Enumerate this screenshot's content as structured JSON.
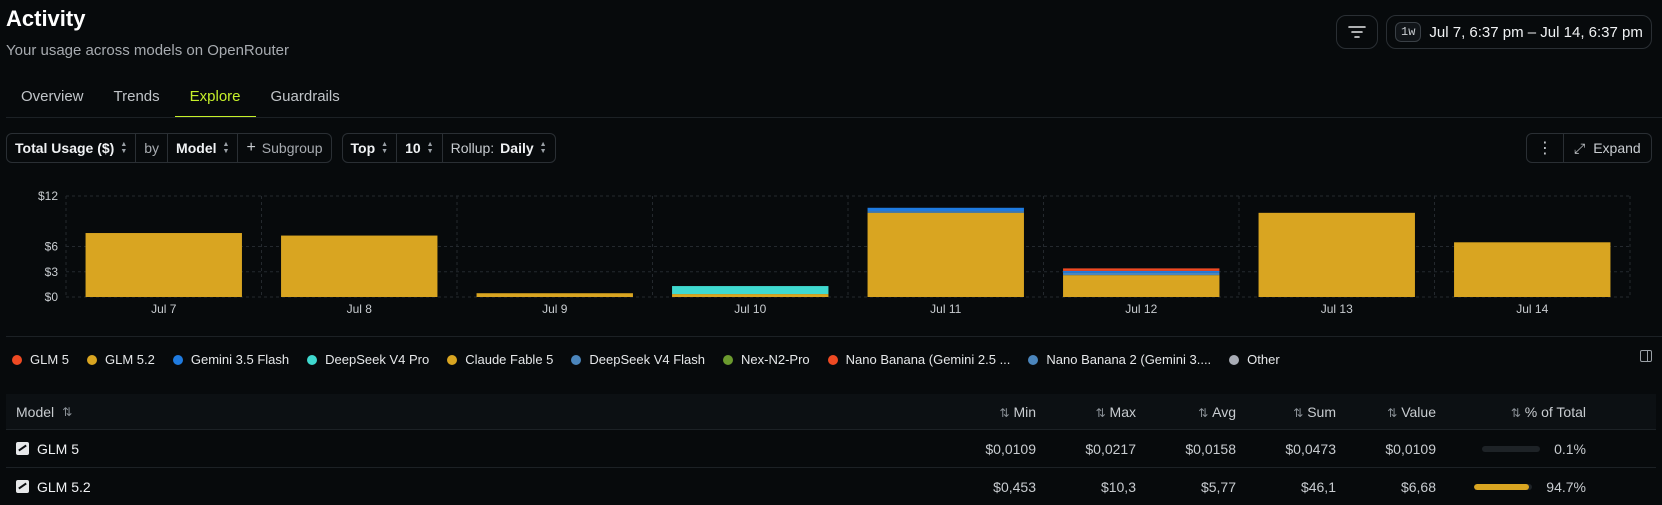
{
  "header": {
    "title": "Activity",
    "subtitle": "Your usage across models on OpenRouter",
    "range_chip": "1w",
    "date_range": "Jul 7, 6:37 pm – Jul 14, 6:37 pm"
  },
  "tabs": [
    {
      "label": "Overview",
      "active": false
    },
    {
      "label": "Trends",
      "active": false
    },
    {
      "label": "Explore",
      "active": true
    },
    {
      "label": "Guardrails",
      "active": false
    }
  ],
  "toolbar": {
    "metric": "Total Usage ($)",
    "by": "by",
    "group": "Model",
    "subgroup": "Subgroup",
    "top_label": "Top",
    "top_value": "10",
    "rollup_label": "Rollup:",
    "rollup_value": "Daily",
    "expand": "Expand"
  },
  "colors": {
    "accent": "#c6f02a",
    "bar_primary": "#d9a521"
  },
  "chart_data": {
    "type": "bar",
    "stacked": true,
    "categories": [
      "Jul 7",
      "Jul 8",
      "Jul 9",
      "Jul 10",
      "Jul 11",
      "Jul 12",
      "Jul 13",
      "Jul 14"
    ],
    "y_ticks": [
      "$12",
      "$6",
      "$3",
      "$0"
    ],
    "y_tick_values": [
      12,
      6,
      3,
      0
    ],
    "ylim": [
      0,
      12
    ],
    "grid": true,
    "series": [
      {
        "name": "GLM 5.2",
        "color": "#d9a521",
        "values": [
          7.6,
          7.3,
          0.45,
          0.35,
          10.0,
          2.6,
          10.0,
          6.5
        ]
      },
      {
        "name": "DeepSeek V4 Pro",
        "color": "#3fd9cf",
        "values": [
          0,
          0,
          0,
          0.95,
          0,
          0,
          0,
          0
        ]
      },
      {
        "name": "DeepSeek V4 Flash",
        "color": "#4b86bd",
        "values": [
          0,
          0,
          0,
          0,
          0.2,
          0.3,
          0,
          0
        ]
      },
      {
        "name": "Gemini 3.5 Flash",
        "color": "#1f7be0",
        "values": [
          0,
          0,
          0,
          0,
          0.4,
          0.2,
          0,
          0
        ]
      },
      {
        "name": "Nano Banana (Gemini 2.5 ...",
        "color": "#ef4a23",
        "values": [
          0,
          0,
          0,
          0,
          0,
          0.3,
          0,
          0
        ]
      }
    ]
  },
  "legend": [
    {
      "label": "GLM 5",
      "color": "#ef4a23"
    },
    {
      "label": "GLM 5.2",
      "color": "#d9a521"
    },
    {
      "label": "Gemini 3.5 Flash",
      "color": "#1f7be0"
    },
    {
      "label": "DeepSeek V4 Pro",
      "color": "#3fd9cf"
    },
    {
      "label": "Claude Fable 5",
      "color": "#d9a521"
    },
    {
      "label": "DeepSeek V4 Flash",
      "color": "#4b86bd"
    },
    {
      "label": "Nex-N2-Pro",
      "color": "#6b9a2e"
    },
    {
      "label": "Nano Banana (Gemini 2.5 ...",
      "color": "#ef4a23"
    },
    {
      "label": "Nano Banana 2 (Gemini 3....",
      "color": "#4b86bd"
    },
    {
      "label": "Other",
      "color": "#a9adb6"
    }
  ],
  "table": {
    "headers": {
      "model": "Model",
      "min": "Min",
      "max": "Max",
      "avg": "Avg",
      "sum": "Sum",
      "value": "Value",
      "pct": "% of Total"
    },
    "rows": [
      {
        "model": "GLM 5",
        "min": "$0,0109",
        "max": "$0,0217",
        "avg": "$0,0158",
        "sum": "$0,0473",
        "value": "$0,0109",
        "pct": "0.1%",
        "pct_fill": 0.001
      },
      {
        "model": "GLM 5.2",
        "min": "$0,453",
        "max": "$10,3",
        "avg": "$5,77",
        "sum": "$46,1",
        "value": "$6,68",
        "pct": "94.7%",
        "pct_fill": 0.947
      }
    ]
  }
}
